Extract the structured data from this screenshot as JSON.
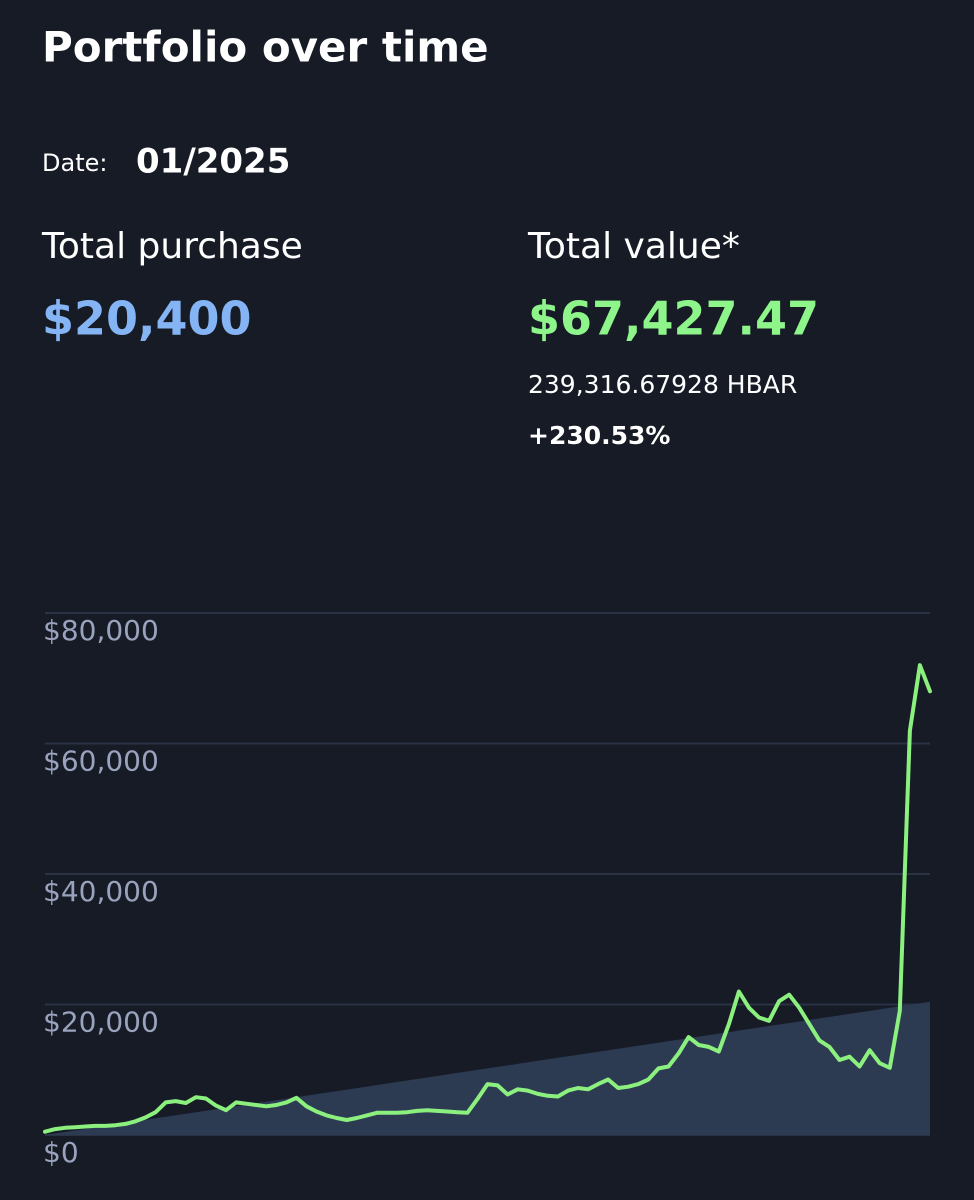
{
  "header": {
    "title": "Portfolio over time",
    "date_label": "Date:",
    "date": "01/2025"
  },
  "summary": {
    "purchase_label": "Total purchase",
    "purchase": "$20,400",
    "value_label": "Total value*",
    "value": "$67,427.47",
    "holdings": "239,316.67928 HBAR",
    "change": "+230.53%"
  },
  "chart_data": {
    "type": "line",
    "ylim": [
      0,
      80000
    ],
    "yticks": [
      {
        "value": 0,
        "label": "$0"
      },
      {
        "value": 20000,
        "label": "$20,000"
      },
      {
        "value": 40000,
        "label": "$40,000"
      },
      {
        "value": 60000,
        "label": "$60,000"
      },
      {
        "value": 80000,
        "label": "$80,000"
      }
    ],
    "grid": true,
    "series": [
      {
        "color": "#2c3a52",
        "fill": true,
        "values": [
          0,
          232,
          464,
          696,
          928,
          1160,
          1392,
          1624,
          1856,
          2088,
          2320,
          2552,
          2784,
          3016,
          3248,
          3480,
          3712,
          3944,
          4176,
          4408,
          4640,
          4872,
          5104,
          5336,
          5568,
          5800,
          6032,
          6264,
          6496,
          6728,
          6960,
          7192,
          7424,
          7656,
          7888,
          8120,
          8352,
          8584,
          8816,
          9048,
          9280,
          9512,
          9744,
          9976,
          10208,
          10440,
          10672,
          10904,
          11136,
          11368,
          11600,
          11832,
          12064,
          12296,
          12528,
          12760,
          12992,
          13224,
          13456,
          13688,
          13920,
          14152,
          14384,
          14616,
          14848,
          15080,
          15312,
          15544,
          15776,
          16008,
          16240,
          16472,
          16704,
          16936,
          17168,
          17400,
          17632,
          17864,
          18096,
          18328,
          18560,
          18792,
          19024,
          19256,
          19488,
          19720,
          19952,
          20184,
          20400
        ]
      },
      {
        "color": "#8cf07f",
        "fill": false,
        "values": [
          500,
          900,
          1100,
          1200,
          1300,
          1400,
          1400,
          1500,
          1700,
          2100,
          2700,
          3500,
          5000,
          5200,
          4900,
          5800,
          5600,
          4500,
          3800,
          5000,
          4800,
          4600,
          4400,
          4600,
          5000,
          5700,
          4400,
          3600,
          3000,
          2600,
          2300,
          2600,
          3000,
          3400,
          3400,
          3400,
          3500,
          3700,
          3800,
          3700,
          3600,
          3500,
          3400,
          5500,
          7800,
          7600,
          6200,
          7000,
          6800,
          6300,
          6000,
          5900,
          6800,
          7200,
          7000,
          7800,
          8500,
          7200,
          7400,
          7800,
          8500,
          10200,
          10500,
          12500,
          15000,
          13800,
          13500,
          12800,
          17000,
          22000,
          19500,
          18000,
          17500,
          20500,
          21500,
          19500,
          17000,
          14500,
          13500,
          11500,
          12000,
          10500,
          13000,
          11000,
          10300,
          19000,
          62000,
          72000,
          68000
        ]
      }
    ]
  }
}
